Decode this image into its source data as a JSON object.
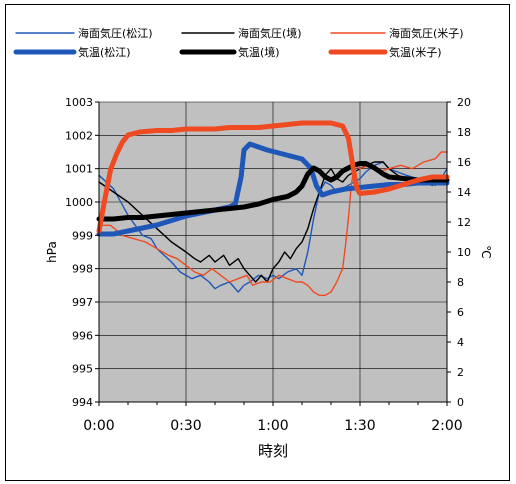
{
  "chart_data": {
    "type": "line",
    "xlabel": "時刻",
    "ylabel_left": "hPa",
    "ylabel_right": "℃",
    "x_ticks": [
      "0:00",
      "0:30",
      "1:00",
      "1:30",
      "2:00"
    ],
    "x_range_minutes": [
      0,
      120
    ],
    "ylim_left": [
      994,
      1003
    ],
    "ylim_right": [
      0,
      20
    ],
    "left_ticks": [
      994,
      995,
      996,
      997,
      998,
      999,
      1000,
      1001,
      1002,
      1003
    ],
    "right_ticks": [
      0,
      2,
      4,
      6,
      8,
      10,
      12,
      14,
      16,
      18,
      20
    ],
    "grid": true,
    "plot_background": "#c0c0c0",
    "legend_position": "top",
    "series": [
      {
        "name": "海面気圧(松江)",
        "axis": "left",
        "color": "#1f57b8",
        "thickness": "thin",
        "points": [
          [
            0,
            1000.8
          ],
          [
            5,
            1000.4
          ],
          [
            10,
            999.6
          ],
          [
            15,
            999.0
          ],
          [
            18,
            998.9
          ],
          [
            20,
            998.6
          ],
          [
            25,
            998.2
          ],
          [
            28,
            997.9
          ],
          [
            32,
            997.7
          ],
          [
            35,
            997.8
          ],
          [
            38,
            997.6
          ],
          [
            40,
            997.4
          ],
          [
            42,
            997.5
          ],
          [
            45,
            997.6
          ],
          [
            48,
            997.3
          ],
          [
            50,
            997.5
          ],
          [
            52,
            997.6
          ],
          [
            55,
            997.8
          ],
          [
            58,
            997.7
          ],
          [
            60,
            997.8
          ],
          [
            62,
            997.7
          ],
          [
            65,
            997.9
          ],
          [
            68,
            998.0
          ],
          [
            70,
            997.8
          ],
          [
            72,
            998.5
          ],
          [
            74,
            999.5
          ],
          [
            76,
            1000.3
          ],
          [
            78,
            1000.6
          ],
          [
            80,
            1000.5
          ],
          [
            82,
            1000.3
          ],
          [
            84,
            1000.4
          ],
          [
            86,
            1000.5
          ],
          [
            88,
            1000.6
          ],
          [
            90,
            1000.7
          ],
          [
            92,
            1000.9
          ],
          [
            95,
            1001.1
          ],
          [
            98,
            1001.2
          ],
          [
            100,
            1001.0
          ],
          [
            103,
            1000.9
          ],
          [
            106,
            1000.8
          ],
          [
            110,
            1000.7
          ],
          [
            113,
            1000.6
          ],
          [
            116,
            1000.5
          ],
          [
            118,
            1000.7
          ],
          [
            120,
            1001.0
          ]
        ]
      },
      {
        "name": "海面気圧(境)",
        "axis": "left",
        "color": "#000000",
        "thickness": "thin",
        "points": [
          [
            0,
            1000.6
          ],
          [
            5,
            1000.3
          ],
          [
            10,
            1000.0
          ],
          [
            15,
            999.6
          ],
          [
            20,
            999.2
          ],
          [
            25,
            998.8
          ],
          [
            30,
            998.5
          ],
          [
            33,
            998.3
          ],
          [
            35,
            998.2
          ],
          [
            38,
            998.4
          ],
          [
            40,
            998.2
          ],
          [
            43,
            998.4
          ],
          [
            45,
            998.1
          ],
          [
            48,
            998.3
          ],
          [
            50,
            998.0
          ],
          [
            52,
            997.8
          ],
          [
            54,
            997.6
          ],
          [
            56,
            997.8
          ],
          [
            58,
            997.6
          ],
          [
            60,
            998.0
          ],
          [
            62,
            998.2
          ],
          [
            64,
            998.5
          ],
          [
            66,
            998.3
          ],
          [
            68,
            998.6
          ],
          [
            70,
            998.8
          ],
          [
            72,
            999.2
          ],
          [
            74,
            999.8
          ],
          [
            76,
            1000.3
          ],
          [
            78,
            1000.8
          ],
          [
            80,
            1001.0
          ],
          [
            82,
            1000.7
          ],
          [
            84,
            1000.6
          ],
          [
            86,
            1000.8
          ],
          [
            88,
            1000.9
          ],
          [
            90,
            1001.0
          ],
          [
            92,
            1001.1
          ],
          [
            95,
            1001.2
          ],
          [
            98,
            1001.2
          ],
          [
            100,
            1001.0
          ],
          [
            103,
            1000.8
          ],
          [
            106,
            1000.7
          ],
          [
            110,
            1000.6
          ],
          [
            115,
            1000.5
          ],
          [
            120,
            1000.7
          ]
        ]
      },
      {
        "name": "海面気圧(米子)",
        "axis": "left",
        "color": "#f04a22",
        "thickness": "thin",
        "points": [
          [
            0,
            999.3
          ],
          [
            4,
            999.3
          ],
          [
            8,
            999.0
          ],
          [
            12,
            998.9
          ],
          [
            16,
            998.8
          ],
          [
            20,
            998.6
          ],
          [
            24,
            998.4
          ],
          [
            27,
            998.3
          ],
          [
            30,
            998.1
          ],
          [
            33,
            997.9
          ],
          [
            36,
            997.8
          ],
          [
            39,
            998.0
          ],
          [
            42,
            997.8
          ],
          [
            45,
            997.6
          ],
          [
            48,
            997.7
          ],
          [
            51,
            997.8
          ],
          [
            53,
            997.5
          ],
          [
            56,
            997.6
          ],
          [
            59,
            997.6
          ],
          [
            62,
            997.8
          ],
          [
            65,
            997.7
          ],
          [
            68,
            997.6
          ],
          [
            70,
            997.6
          ],
          [
            72,
            997.5
          ],
          [
            74,
            997.3
          ],
          [
            76,
            997.2
          ],
          [
            78,
            997.2
          ],
          [
            80,
            997.3
          ],
          [
            82,
            997.6
          ],
          [
            84,
            998.0
          ],
          [
            85,
            998.7
          ],
          [
            86,
            999.5
          ],
          [
            87,
            1000.5
          ],
          [
            88,
            1001.1
          ],
          [
            90,
            1001.0
          ],
          [
            93,
            1001.1
          ],
          [
            96,
            1000.9
          ],
          [
            100,
            1001.0
          ],
          [
            104,
            1001.1
          ],
          [
            108,
            1001.0
          ],
          [
            112,
            1001.2
          ],
          [
            116,
            1001.3
          ],
          [
            118,
            1001.5
          ],
          [
            120,
            1001.5
          ]
        ]
      },
      {
        "name": "気温(松江)",
        "axis": "right",
        "color": "#1f57b8",
        "thickness": "thick",
        "points": [
          [
            0,
            11.2
          ],
          [
            5,
            11.2
          ],
          [
            10,
            11.4
          ],
          [
            15,
            11.6
          ],
          [
            20,
            11.8
          ],
          [
            25,
            12.1
          ],
          [
            30,
            12.4
          ],
          [
            35,
            12.6
          ],
          [
            40,
            12.8
          ],
          [
            45,
            13.0
          ],
          [
            47,
            13.2
          ],
          [
            49,
            15.0
          ],
          [
            50,
            16.8
          ],
          [
            52,
            17.2
          ],
          [
            55,
            17.0
          ],
          [
            58,
            16.8
          ],
          [
            62,
            16.6
          ],
          [
            66,
            16.4
          ],
          [
            70,
            16.2
          ],
          [
            73,
            15.6
          ],
          [
            75,
            14.4
          ],
          [
            77,
            13.8
          ],
          [
            80,
            14.0
          ],
          [
            85,
            14.2
          ],
          [
            90,
            14.3
          ],
          [
            95,
            14.4
          ],
          [
            100,
            14.5
          ],
          [
            105,
            14.5
          ],
          [
            110,
            14.6
          ],
          [
            115,
            14.6
          ],
          [
            120,
            14.6
          ]
        ]
      },
      {
        "name": "気温(境)",
        "axis": "right",
        "color": "#000000",
        "thickness": "thick",
        "points": [
          [
            0,
            12.2
          ],
          [
            5,
            12.2
          ],
          [
            10,
            12.3
          ],
          [
            15,
            12.3
          ],
          [
            20,
            12.4
          ],
          [
            25,
            12.5
          ],
          [
            30,
            12.6
          ],
          [
            35,
            12.7
          ],
          [
            40,
            12.8
          ],
          [
            45,
            12.9
          ],
          [
            50,
            13.0
          ],
          [
            55,
            13.2
          ],
          [
            60,
            13.5
          ],
          [
            65,
            13.7
          ],
          [
            68,
            14.0
          ],
          [
            70,
            14.4
          ],
          [
            72,
            15.2
          ],
          [
            74,
            15.6
          ],
          [
            76,
            15.4
          ],
          [
            78,
            15.0
          ],
          [
            80,
            14.8
          ],
          [
            82,
            15.0
          ],
          [
            84,
            15.4
          ],
          [
            86,
            15.6
          ],
          [
            88,
            15.8
          ],
          [
            90,
            15.9
          ],
          [
            92,
            15.9
          ],
          [
            95,
            15.6
          ],
          [
            98,
            15.2
          ],
          [
            100,
            15.0
          ],
          [
            105,
            14.9
          ],
          [
            110,
            14.8
          ],
          [
            115,
            14.8
          ],
          [
            120,
            14.8
          ]
        ]
      },
      {
        "name": "気温(米子)",
        "axis": "right",
        "color": "#f04a22",
        "thickness": "thick",
        "points": [
          [
            0,
            11.4
          ],
          [
            2,
            13.5
          ],
          [
            4,
            15.5
          ],
          [
            6,
            16.5
          ],
          [
            8,
            17.3
          ],
          [
            10,
            17.8
          ],
          [
            14,
            18.0
          ],
          [
            20,
            18.1
          ],
          [
            25,
            18.1
          ],
          [
            30,
            18.2
          ],
          [
            35,
            18.2
          ],
          [
            40,
            18.2
          ],
          [
            45,
            18.3
          ],
          [
            50,
            18.3
          ],
          [
            55,
            18.3
          ],
          [
            60,
            18.4
          ],
          [
            65,
            18.5
          ],
          [
            70,
            18.6
          ],
          [
            75,
            18.6
          ],
          [
            80,
            18.6
          ],
          [
            84,
            18.4
          ],
          [
            86,
            17.6
          ],
          [
            87,
            16.4
          ],
          [
            88,
            15.2
          ],
          [
            89,
            14.2
          ],
          [
            90,
            13.9
          ],
          [
            95,
            14.0
          ],
          [
            100,
            14.2
          ],
          [
            105,
            14.5
          ],
          [
            110,
            14.8
          ],
          [
            115,
            15.0
          ],
          [
            120,
            15.0
          ]
        ]
      }
    ]
  }
}
